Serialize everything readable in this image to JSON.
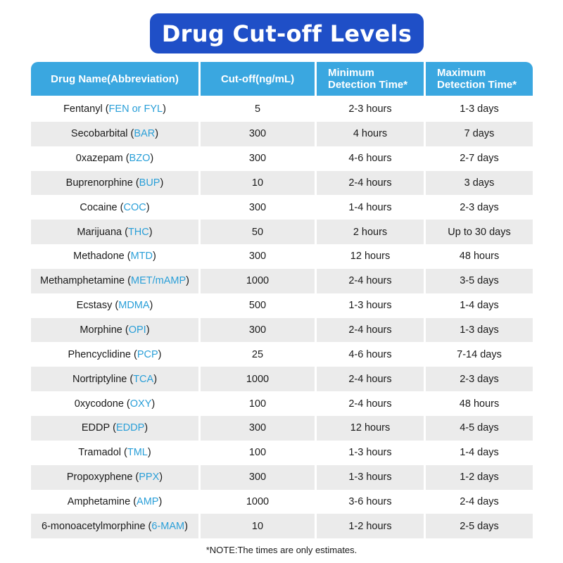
{
  "title": "Drug Cut-off Levels",
  "columns": {
    "name": "Drug Name(Abbreviation)",
    "cutoff": "Cut-off(ng/mL)",
    "min_line1": "Minimum",
    "min_line2": "Detection Time*",
    "max_line1": "Maximum",
    "max_line2": "Detection Time*"
  },
  "rows": [
    {
      "name": "Fentanyl",
      "abbr": "FEN or FYL",
      "cutoff": "5",
      "min": "2-3 hours",
      "max": "1-3 days"
    },
    {
      "name": "Secobarbital",
      "abbr": "BAR",
      "cutoff": "300",
      "min": "4 hours",
      "max": "7 days"
    },
    {
      "name": "0xazepam",
      "abbr": "BZO",
      "cutoff": "300",
      "min": "4-6 hours",
      "max": "2-7 days"
    },
    {
      "name": "Buprenorphine",
      "abbr": "BUP",
      "cutoff": "10",
      "min": "2-4 hours",
      "max": "3 days"
    },
    {
      "name": "Cocaine",
      "abbr": "COC",
      "cutoff": "300",
      "min": "1-4 hours",
      "max": "2-3 days"
    },
    {
      "name": "Marijuana",
      "abbr": "THC",
      "cutoff": "50",
      "min": "2 hours",
      "max": "Up to 30 days"
    },
    {
      "name": "Methadone",
      "abbr": "MTD",
      "cutoff": "300",
      "min": "12 hours",
      "max": "48 hours"
    },
    {
      "name": "Methamphetamine",
      "abbr": "MET/mAMP",
      "cutoff": "1000",
      "min": "2-4 hours",
      "max": "3-5 days"
    },
    {
      "name": "Ecstasy",
      "abbr": "MDMA",
      "cutoff": "500",
      "min": "1-3 hours",
      "max": "1-4 days"
    },
    {
      "name": "Morphine",
      "abbr": "OPI",
      "cutoff": "300",
      "min": "2-4 hours",
      "max": "1-3 days"
    },
    {
      "name": "Phencyclidine",
      "abbr": "PCP",
      "cutoff": "25",
      "min": "4-6 hours",
      "max": "7-14 days"
    },
    {
      "name": "Nortriptyline",
      "abbr": "TCA",
      "cutoff": "1000",
      "min": "2-4 hours",
      "max": "2-3 days"
    },
    {
      "name": "0xycodone",
      "abbr": "OXY",
      "cutoff": "100",
      "min": "2-4 hours",
      "max": "48 hours"
    },
    {
      "name": "EDDP",
      "abbr": "EDDP",
      "cutoff": "300",
      "min": "12 hours",
      "max": "4-5 days"
    },
    {
      "name": "Tramadol",
      "abbr": "TML",
      "cutoff": "100",
      "min": "1-3 hours",
      "max": "1-4 days"
    },
    {
      "name": "Propoxyphene",
      "abbr": "PPX",
      "cutoff": "300",
      "min": "1-3 hours",
      "max": "1-2 days"
    },
    {
      "name": "Amphetamine",
      "abbr": "AMP",
      "cutoff": "1000",
      "min": "3-6 hours",
      "max": "2-4 days"
    },
    {
      "name": "6-monoacetylmorphine",
      "abbr": "6-MAM",
      "cutoff": "10",
      "min": "1-2 hours",
      "max": "2-5 days"
    }
  ],
  "note": "*NOTE:The times are only estimates.",
  "colors": {
    "title_bg": "#1f4fc7",
    "header_bg": "#3aa7e0",
    "abbreviation": "#2a9fd8",
    "stripe": "#ebebeb"
  }
}
